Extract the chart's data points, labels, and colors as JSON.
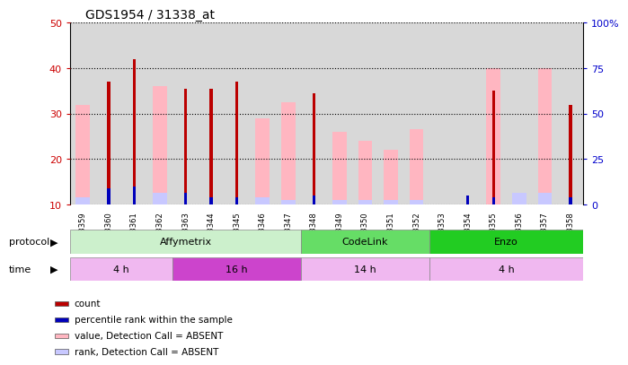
{
  "title": "GDS1954 / 31338_at",
  "samples": [
    "GSM73359",
    "GSM73360",
    "GSM73361",
    "GSM73362",
    "GSM73363",
    "GSM73344",
    "GSM73345",
    "GSM73346",
    "GSM73347",
    "GSM73348",
    "GSM73349",
    "GSM73350",
    "GSM73351",
    "GSM73352",
    "GSM73353",
    "GSM73354",
    "GSM73355",
    "GSM73356",
    "GSM73357",
    "GSM73358"
  ],
  "count_values": [
    0,
    37,
    42,
    0,
    35.5,
    35.5,
    37,
    0,
    0,
    34.5,
    0,
    0,
    0,
    0,
    0,
    0,
    35,
    0,
    0,
    32
  ],
  "absent_value_values": [
    32,
    0,
    0,
    36,
    0,
    0,
    0,
    29,
    32.5,
    0,
    26,
    24,
    22,
    26.5,
    0,
    0,
    40,
    0,
    40,
    0
  ],
  "percentile_rank_values": [
    0,
    13.5,
    14,
    0,
    12.5,
    11.5,
    11.5,
    0,
    0,
    12,
    0,
    0,
    0,
    0,
    0,
    12,
    11.5,
    0,
    0,
    11.5
  ],
  "absent_rank_values": [
    11.5,
    0,
    0,
    12.5,
    0,
    0,
    0,
    11.5,
    11,
    0,
    11,
    11,
    11,
    11,
    0,
    0,
    0,
    12.5,
    12.5,
    0
  ],
  "ylim_left": [
    10,
    50
  ],
  "ylim_right": [
    0,
    100
  ],
  "yticks_left": [
    10,
    20,
    30,
    40,
    50
  ],
  "yticks_right": [
    0,
    25,
    50,
    75,
    100
  ],
  "ytick_labels_left": [
    "10",
    "20",
    "30",
    "40",
    "50"
  ],
  "ytick_labels_right": [
    "0",
    "25",
    "50",
    "75",
    "100%"
  ],
  "color_count": "#bb0000",
  "color_percentile": "#0000bb",
  "color_absent_value": "#ffb6c1",
  "color_absent_rank": "#c8c8ff",
  "wide_bar_width": 0.55,
  "narrow_bar_width": 0.12,
  "protocol_groups": [
    {
      "label": "Affymetrix",
      "start": 0,
      "end": 9,
      "color": "#ccf0cc"
    },
    {
      "label": "CodeLink",
      "start": 9,
      "end": 14,
      "color": "#66dd66"
    },
    {
      "label": "Enzo",
      "start": 14,
      "end": 20,
      "color": "#22cc22"
    }
  ],
  "time_groups": [
    {
      "label": "4 h",
      "start": 0,
      "end": 4,
      "color": "#f0b8f0"
    },
    {
      "label": "16 h",
      "start": 4,
      "end": 9,
      "color": "#cc44cc"
    },
    {
      "label": "14 h",
      "start": 9,
      "end": 14,
      "color": "#f0b8f0"
    },
    {
      "label": "4 h",
      "start": 14,
      "end": 20,
      "color": "#f0b8f0"
    }
  ],
  "legend_items": [
    {
      "label": "count",
      "color": "#bb0000"
    },
    {
      "label": "percentile rank within the sample",
      "color": "#0000bb"
    },
    {
      "label": "value, Detection Call = ABSENT",
      "color": "#ffb6c1"
    },
    {
      "label": "rank, Detection Call = ABSENT",
      "color": "#c8c8ff"
    }
  ],
  "bg_color": "#ffffff",
  "axis_color_left": "#cc0000",
  "axis_color_right": "#0000cc",
  "tick_bg_color": "#d8d8d8"
}
